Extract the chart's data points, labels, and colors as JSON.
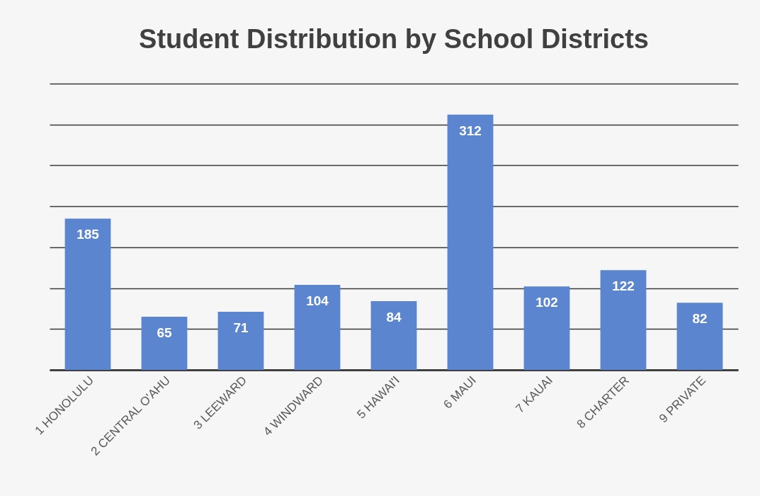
{
  "chart_data": {
    "type": "bar",
    "title": "Student Distribution by School Districts",
    "categories": [
      "1 HONOLULU",
      "2 CENTRAL O'AHU",
      "3 LEEWARD",
      "4 WINDWARD",
      "5 HAWAI'I",
      "6 MAUI",
      "7 KAUAI",
      "8 CHARTER",
      "9 PRIVATE"
    ],
    "values": [
      185,
      65,
      71,
      104,
      84,
      312,
      102,
      122,
      82
    ],
    "color": "#5b85cf",
    "ylim": [
      0,
      350
    ],
    "yticks": [
      {
        "value": 0,
        "label": null
      },
      {
        "value": 50,
        "label": null
      },
      {
        "value": 100,
        "label": null
      },
      {
        "value": 150,
        "label": null
      },
      {
        "value": 200,
        "label": null
      },
      {
        "value": 250,
        "label": null
      },
      {
        "value": 300,
        "label": null
      },
      {
        "value": 350,
        "label": null
      }
    ],
    "grid": "y",
    "data_labels": true,
    "tick_labels": "x"
  }
}
